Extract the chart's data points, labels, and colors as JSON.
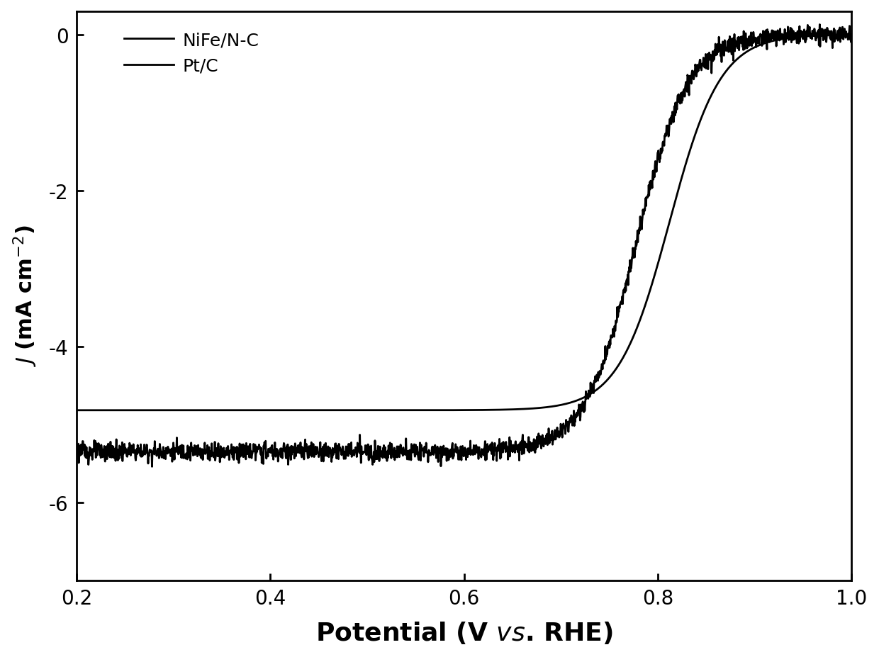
{
  "title": "",
  "xlabel": "Potential (V \\it{vs}. RHE)",
  "ylabel": "J (mA cm-2)",
  "xlim": [
    0.2,
    1.0
  ],
  "ylim": [
    -7.0,
    0.3
  ],
  "xticks": [
    0.2,
    0.4,
    0.6,
    0.8,
    1.0
  ],
  "yticks": [
    0,
    -2,
    -4,
    -6
  ],
  "background_color": "#ffffff",
  "line_color": "#000000",
  "legend_labels": [
    "NiFe/N-C",
    "Pt/C"
  ],
  "NiFe_plateau": -4.82,
  "NiFe_half_wave": 0.812,
  "NiFe_sharpness": 38,
  "Pt_plateau": -5.35,
  "Pt_half_wave": 0.778,
  "Pt_sharpness": 38,
  "xlabel_fontsize": 26,
  "ylabel_fontsize": 22,
  "tick_fontsize": 20,
  "legend_fontsize": 18,
  "linewidth_nife": 2.0,
  "linewidth_ptc": 2.0,
  "noise_amplitude": 0.06
}
